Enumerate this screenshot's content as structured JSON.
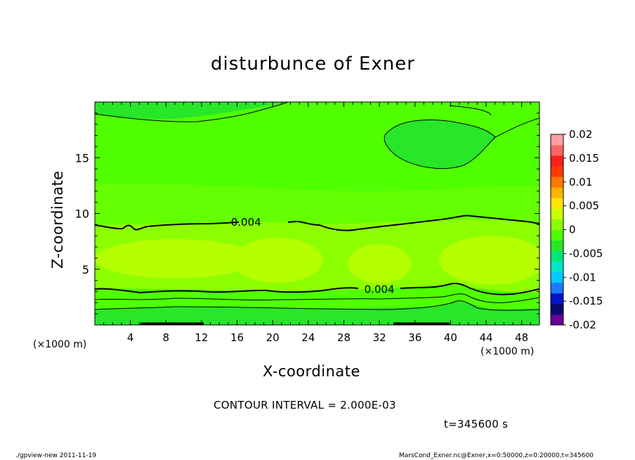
{
  "chart_data": {
    "type": "heatmap",
    "title": "disturbunce of Exner",
    "xlabel": "X-coordinate",
    "ylabel": "Z-coordinate",
    "x_unit": "(×1000 m)",
    "xlim": [
      0,
      50
    ],
    "ylim": [
      0,
      20
    ],
    "x_ticks": [
      4,
      8,
      12,
      16,
      20,
      24,
      28,
      32,
      36,
      40,
      44,
      48
    ],
    "y_ticks": [
      5,
      10,
      15
    ],
    "colorbar": {
      "ticks": [
        "0.02",
        "0.015",
        "0.01",
        "0.005",
        "0",
        "-0.005",
        "-0.01",
        "-0.015",
        "-0.02"
      ],
      "range": [
        -0.02,
        0.02
      ],
      "colors": [
        "#6a0096",
        "#0a0a6e",
        "#0014c8",
        "#1e78ff",
        "#00c8ff",
        "#00e6c8",
        "#00e678",
        "#28e628",
        "#50ff00",
        "#8cff00",
        "#c8ff00",
        "#ffe600",
        "#ffb400",
        "#ff7800",
        "#ff3c00",
        "#ff1e1e",
        "#ff6464",
        "#ffa0a0"
      ]
    },
    "contour_labels": [
      {
        "x": 17,
        "z": 9.2,
        "text": "0.004"
      },
      {
        "x": 32,
        "z": 3.2,
        "text": "0.004"
      }
    ],
    "contour_interval": "CONTOUR INTERVAL = 2.000E-03",
    "time": "t=345600 s"
  },
  "footer": {
    "left": "./gpview-new   2011-11-19",
    "right": "MarsCond_Exner.nc@Exner,x=0:50000,z=0:20000,t=345600"
  }
}
